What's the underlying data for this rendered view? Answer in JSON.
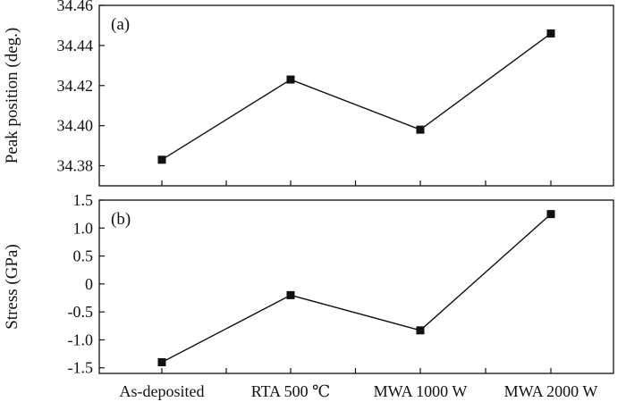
{
  "chart_data": [
    {
      "panel_label": "(a)",
      "type": "line",
      "categories": [
        "As-deposited",
        "RTA 500 ℃",
        "MWA 1000 W",
        "MWA 2000 W"
      ],
      "values": [
        34.383,
        34.423,
        34.398,
        34.446
      ],
      "ylabel": "Peak position (deg.)",
      "ylim": [
        34.37,
        34.46
      ],
      "yticks": [
        "34.38",
        "34.40",
        "34.42",
        "34.44",
        "34.46"
      ],
      "marker": "square",
      "grid": false
    },
    {
      "panel_label": "(b)",
      "type": "line",
      "categories": [
        "As-deposited",
        "RTA 500 ℃",
        "MWA 1000 W",
        "MWA 2000 W"
      ],
      "values": [
        -1.4,
        -0.2,
        -0.83,
        1.25
      ],
      "ylabel": "Stress (GPa)",
      "xlabel": "",
      "ylim": [
        -1.6,
        1.5
      ],
      "yticks": [
        "-1.5",
        "-1.0",
        "-0.5",
        "0",
        "0.5",
        "1.0",
        "1.5"
      ],
      "marker": "square",
      "grid": false
    }
  ],
  "colors": {
    "line": "#111111",
    "marker": "#111111",
    "frame": "#111111"
  }
}
